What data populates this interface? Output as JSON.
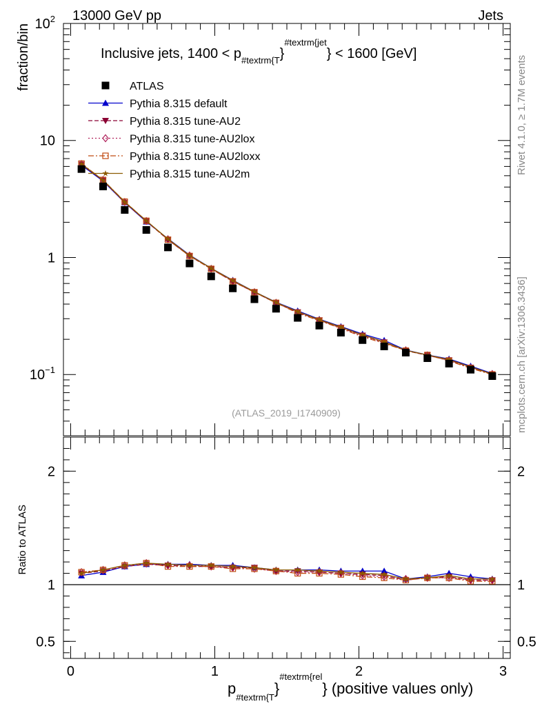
{
  "header": {
    "left": "13000 GeV pp",
    "right": "Jets"
  },
  "side_labels": {
    "rivet": "Rivet 4.1.0, ≥ 1.7M events",
    "mcplots": "mcplots.cern.ch [arXiv:1306.3436]"
  },
  "chart_data": [
    {
      "type": "line",
      "panel": "main",
      "title_parts": {
        "prefix": "Inclusive jets, 1400 < p",
        "sub": "#textrm{T",
        "sup": "#textrm{jet",
        "suffix": "< 1600 [GeV]"
      },
      "ylabel": "fraction/bin",
      "yscale": "log",
      "ylim": [
        0.03,
        100
      ],
      "xlim": [
        -0.05,
        3.05
      ],
      "y_ticks": [
        {
          "v": 100,
          "label": "10",
          "exp": "2"
        },
        {
          "v": 10,
          "label": "10",
          "exp": ""
        },
        {
          "v": 1,
          "label": "1",
          "exp": ""
        },
        {
          "v": 0.1,
          "label": "10",
          "exp": "−1"
        }
      ],
      "watermark": "(ATLAS_2019_I1740909)",
      "x": [
        0.075,
        0.225,
        0.375,
        0.525,
        0.675,
        0.825,
        0.975,
        1.125,
        1.275,
        1.425,
        1.575,
        1.725,
        1.875,
        2.025,
        2.175,
        2.325,
        2.475,
        2.625,
        2.775,
        2.925
      ],
      "series": [
        {
          "name": "ATLAS",
          "color": "#000000",
          "marker": "square",
          "dash": "",
          "values": [
            5.7,
            4.05,
            2.55,
            1.72,
            1.22,
            0.89,
            0.69,
            0.545,
            0.44,
            0.365,
            0.305,
            0.262,
            0.228,
            0.197,
            0.174,
            0.154,
            0.138,
            0.124,
            0.11,
            0.097
          ]
        },
        {
          "name": "Pythia 8.315 default",
          "color": "#0000cc",
          "marker": "triangle-up",
          "dash": "",
          "values": [
            6.15,
            4.5,
            2.95,
            2.02,
            1.45,
            1.05,
            0.81,
            0.64,
            0.51,
            0.415,
            0.35,
            0.297,
            0.257,
            0.222,
            0.196,
            0.162,
            0.147,
            0.136,
            0.118,
            0.102
          ]
        },
        {
          "name": "Pythia 8.315 tune-AU2",
          "color": "#8b0033",
          "marker": "triangle-down",
          "dash": "6,3",
          "values": [
            6.25,
            4.55,
            2.95,
            2.04,
            1.42,
            1.03,
            0.8,
            0.625,
            0.505,
            0.41,
            0.342,
            0.292,
            0.252,
            0.216,
            0.189,
            0.16,
            0.146,
            0.133,
            0.115,
            0.101
          ]
        },
        {
          "name": "Pythia 8.315 tune-AU2lox",
          "color": "#b0205a",
          "marker": "diamond-open",
          "dash": "2,3",
          "values": [
            6.3,
            4.6,
            2.98,
            2.05,
            1.43,
            1.04,
            0.8,
            0.625,
            0.505,
            0.41,
            0.338,
            0.29,
            0.25,
            0.213,
            0.187,
            0.161,
            0.146,
            0.132,
            0.114,
            0.101
          ]
        },
        {
          "name": "Pythia 8.315 tune-AU2loxx",
          "color": "#c04a10",
          "marker": "square-open",
          "dash": "8,3,2,3",
          "values": [
            6.35,
            4.6,
            3.0,
            2.06,
            1.42,
            1.03,
            0.8,
            0.625,
            0.505,
            0.41,
            0.335,
            0.289,
            0.248,
            0.21,
            0.185,
            0.16,
            0.147,
            0.131,
            0.113,
            0.1
          ]
        },
        {
          "name": "Pythia 8.315 tune-AU2m",
          "color": "#8b5a00",
          "marker": "star",
          "dash": "",
          "values": [
            6.3,
            4.58,
            2.99,
            2.06,
            1.44,
            1.04,
            0.81,
            0.635,
            0.51,
            0.413,
            0.345,
            0.294,
            0.254,
            0.218,
            0.19,
            0.161,
            0.147,
            0.134,
            0.116,
            0.101
          ]
        }
      ]
    },
    {
      "type": "line",
      "panel": "ratio",
      "ylabel": "Ratio to ATLAS",
      "xlabel_parts": {
        "prefix": "p",
        "sub": "#textrm{T",
        "sup": "#textrm{rel",
        "suffix": "(positive values only)"
      },
      "ylim": [
        0.35,
        2.3
      ],
      "xlim": [
        -0.05,
        3.05
      ],
      "y_ticks": [
        {
          "v": 0.5,
          "label": "0.5"
        },
        {
          "v": 1,
          "label": "1"
        },
        {
          "v": 2,
          "label": "2"
        }
      ],
      "x_ticks": [
        {
          "v": 0,
          "label": "0"
        },
        {
          "v": 1,
          "label": "1"
        },
        {
          "v": 2,
          "label": "2"
        },
        {
          "v": 3,
          "label": "3"
        }
      ],
      "reference": 1,
      "x": [
        0.075,
        0.225,
        0.375,
        0.525,
        0.675,
        0.825,
        0.975,
        1.125,
        1.275,
        1.425,
        1.575,
        1.725,
        1.875,
        2.025,
        2.175,
        2.325,
        2.475,
        2.625,
        2.775,
        2.925
      ],
      "series": [
        {
          "name": "Pythia 8.315 default",
          "color": "#0000cc",
          "marker": "triangle-up",
          "dash": "",
          "values": [
            1.08,
            1.11,
            1.16,
            1.18,
            1.18,
            1.18,
            1.17,
            1.17,
            1.15,
            1.13,
            1.13,
            1.13,
            1.12,
            1.12,
            1.12,
            1.05,
            1.07,
            1.1,
            1.07,
            1.05
          ]
        },
        {
          "name": "Pythia 8.315 tune-AU2",
          "color": "#8b0033",
          "marker": "triangle-down",
          "dash": "6,3",
          "values": [
            1.1,
            1.12,
            1.16,
            1.18,
            1.17,
            1.16,
            1.16,
            1.15,
            1.15,
            1.12,
            1.12,
            1.11,
            1.1,
            1.09,
            1.08,
            1.04,
            1.06,
            1.07,
            1.04,
            1.04
          ]
        },
        {
          "name": "Pythia 8.315 tune-AU2lox",
          "color": "#b0205a",
          "marker": "diamond-open",
          "dash": "2,3",
          "values": [
            1.11,
            1.13,
            1.17,
            1.19,
            1.17,
            1.17,
            1.16,
            1.15,
            1.14,
            1.12,
            1.11,
            1.11,
            1.1,
            1.08,
            1.07,
            1.05,
            1.06,
            1.06,
            1.04,
            1.04
          ]
        },
        {
          "name": "Pythia 8.315 tune-AU2loxx",
          "color": "#c04a10",
          "marker": "square-open",
          "dash": "8,3,2,3",
          "values": [
            1.11,
            1.13,
            1.17,
            1.19,
            1.16,
            1.16,
            1.16,
            1.14,
            1.14,
            1.12,
            1.1,
            1.1,
            1.09,
            1.07,
            1.06,
            1.04,
            1.06,
            1.06,
            1.03,
            1.03
          ]
        },
        {
          "name": "Pythia 8.315 tune-AU2m",
          "color": "#8b5a00",
          "marker": "star",
          "dash": "",
          "values": [
            1.1,
            1.13,
            1.17,
            1.19,
            1.18,
            1.17,
            1.17,
            1.16,
            1.15,
            1.13,
            1.13,
            1.12,
            1.11,
            1.1,
            1.09,
            1.05,
            1.06,
            1.08,
            1.05,
            1.05
          ]
        }
      ]
    }
  ]
}
